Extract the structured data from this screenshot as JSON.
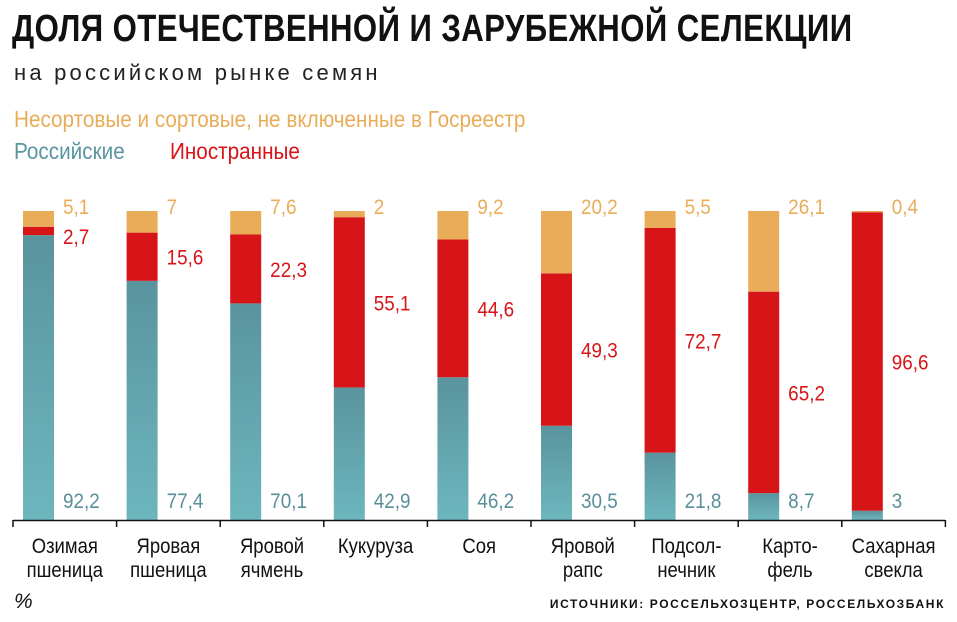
{
  "title": "ДОЛЯ ОТЕЧЕСТВЕННОЙ И ЗАРУБЕЖНОЙ СЕЛЕКЦИИ",
  "subtitle": "на российском рынке семян",
  "unit": "%",
  "source": "ИСТОЧНИКИ: РОССЕЛЬХОЗЦЕНТР, РОССЕЛЬХОЗБАНК",
  "chart_data": {
    "type": "bar",
    "stacked": true,
    "ylim": [
      0,
      100
    ],
    "grid": false,
    "legend_placement": "top-left",
    "categories": [
      [
        "Озимая",
        "пшеница"
      ],
      [
        "Яровая",
        "пшеница"
      ],
      [
        "Яровой",
        "ячмень"
      ],
      [
        "Кукуруза"
      ],
      [
        "Соя"
      ],
      [
        "Яровой",
        "рапс"
      ],
      [
        "Подсол-",
        "нечник"
      ],
      [
        "Карто-",
        "фель"
      ],
      [
        "Сахарная",
        "свекла"
      ]
    ],
    "series": [
      {
        "name": "Российские",
        "color": "#6cb3bb",
        "label_color": "#5a8f9a",
        "values": [
          92.2,
          77.4,
          70.1,
          42.9,
          46.2,
          30.5,
          21.8,
          8.7,
          3
        ],
        "labels": [
          "92,2",
          "77,4",
          "70,1",
          "42,9",
          "46,2",
          "30,5",
          "21,8",
          "8,7",
          "3"
        ]
      },
      {
        "name": "Иностранные",
        "color": "#d71418",
        "label_color": "#d71418",
        "values": [
          2.7,
          15.6,
          22.3,
          55.1,
          44.6,
          49.3,
          72.7,
          65.2,
          96.6
        ],
        "labels": [
          "2,7",
          "15,6",
          "22,3",
          "55,1",
          "44,6",
          "49,3",
          "72,7",
          "65,2",
          "96,6"
        ]
      },
      {
        "name": "Несортовые и сортовые, не включенные в Госреестр",
        "color": "#e9ad5a",
        "label_color": "#e9ad5a",
        "values": [
          5.1,
          7,
          7.6,
          2,
          9.2,
          20.2,
          5.5,
          26.1,
          0.4
        ],
        "labels": [
          "5,1",
          "7",
          "7,6",
          "2",
          "9,2",
          "20,2",
          "5,5",
          "26,1",
          "0,4"
        ]
      }
    ]
  }
}
